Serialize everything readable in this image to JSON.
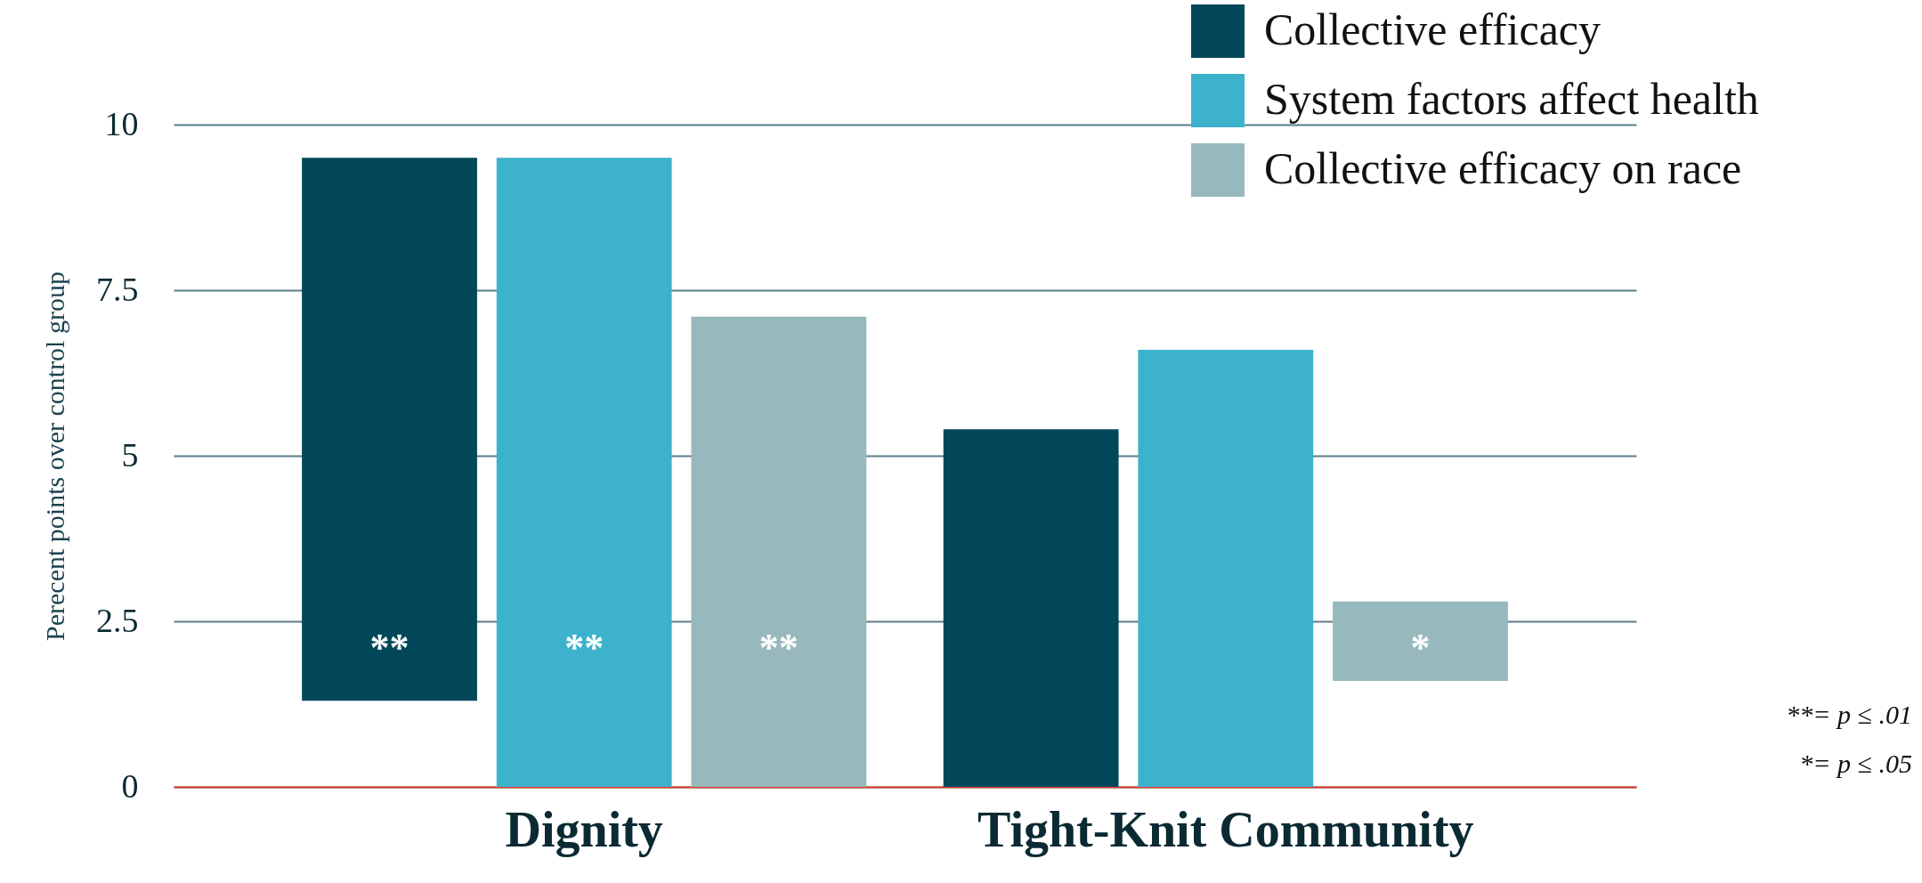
{
  "chart_data": {
    "type": "bar",
    "categories": [
      "Dignity",
      "Tight-Knit Community"
    ],
    "ylabel": "Perecent points over control group",
    "ylim": [
      0,
      10
    ],
    "yticks": [
      0,
      2.5,
      5,
      7.5,
      10
    ],
    "grid": "y",
    "legend": "top right",
    "series": [
      {
        "name": "Collective efficacy",
        "color": "#03485a",
        "values": [
          8.2,
          5.4
        ],
        "base": [
          1.3,
          0
        ],
        "value_labels": [
          "**",
          null
        ]
      },
      {
        "name": "System factors affect health",
        "color": "#3db2cc",
        "values": [
          9.5,
          6.6
        ],
        "base": [
          0,
          0
        ],
        "value_labels": [
          "**",
          null
        ]
      },
      {
        "name": "Collective efficacy on race",
        "color": "#97b9bd",
        "values": [
          7.1,
          1.2
        ],
        "base": [
          0,
          1.6
        ],
        "value_labels": [
          "**",
          "*"
        ]
      }
    ],
    "annotations": [
      "**= p ≤ .01",
      "*= p ≤ .05"
    ]
  }
}
